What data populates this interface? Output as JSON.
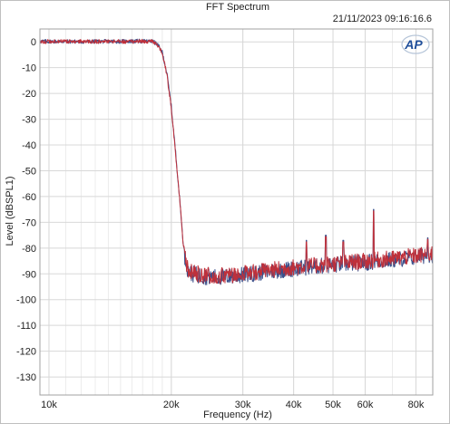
{
  "chart_data": {
    "type": "line",
    "title": "FFT Spectrum",
    "timestamp": "21/11/2023 09:16:16.6",
    "logo_text": "AP",
    "xlabel": "Frequency (Hz)",
    "ylabel": "Level (dBSPL1)",
    "xscale": "log",
    "xlim": [
      9500,
      88000
    ],
    "ylim": [
      -137,
      5
    ],
    "grid": true,
    "x_ticks": [
      10000,
      20000,
      30000,
      40000,
      50000,
      60000,
      80000
    ],
    "x_tick_labels": [
      "10k",
      "20k",
      "30k",
      "40k",
      "50k",
      "60k",
      "80k"
    ],
    "y_ticks": [
      0,
      -10,
      -20,
      -30,
      -40,
      -50,
      -60,
      -70,
      -80,
      -90,
      -100,
      -110,
      -120,
      -130
    ],
    "y_tick_labels": [
      "0",
      "-10",
      "-20",
      "-30",
      "-40",
      "-50",
      "-60",
      "-70",
      "-80",
      "-90",
      "-100",
      "-110",
      "-120",
      "-130"
    ],
    "series": [
      {
        "color": "#3a4f8a",
        "points": [
          [
            9500,
            0.2
          ],
          [
            12000,
            0.1
          ],
          [
            15000,
            0.2
          ],
          [
            17000,
            0.3
          ],
          [
            18000,
            0.2
          ],
          [
            18500,
            -1
          ],
          [
            19000,
            -4
          ],
          [
            19500,
            -12
          ],
          [
            20000,
            -25
          ],
          [
            20500,
            -43
          ],
          [
            21000,
            -62
          ],
          [
            21500,
            -82
          ],
          [
            22000,
            -89
          ],
          [
            22500,
            -90
          ],
          [
            24000,
            -91
          ],
          [
            26000,
            -91.3
          ],
          [
            28000,
            -91
          ],
          [
            30000,
            -90.5
          ],
          [
            33000,
            -89.5
          ],
          [
            36000,
            -88.8
          ],
          [
            40000,
            -88
          ],
          [
            45000,
            -87.2
          ],
          [
            50000,
            -86.6
          ],
          [
            55000,
            -86
          ],
          [
            60000,
            -85.6
          ],
          [
            65000,
            -85
          ],
          [
            70000,
            -84.6
          ],
          [
            75000,
            -84
          ],
          [
            80000,
            -83.4
          ],
          [
            85000,
            -82.8
          ],
          [
            88000,
            -82.5
          ]
        ]
      },
      {
        "color": "#c0303a",
        "points": [
          [
            9500,
            0.1
          ],
          [
            12000,
            0.2
          ],
          [
            15000,
            0.1
          ],
          [
            17000,
            0.2
          ],
          [
            18000,
            0.1
          ],
          [
            18500,
            -1.2
          ],
          [
            19000,
            -4.3
          ],
          [
            19500,
            -12.5
          ],
          [
            20000,
            -25.5
          ],
          [
            20500,
            -43.5
          ],
          [
            21000,
            -62.5
          ],
          [
            21500,
            -82.5
          ],
          [
            22000,
            -88.5
          ],
          [
            22500,
            -89.5
          ],
          [
            24000,
            -90.5
          ],
          [
            26000,
            -90.8
          ],
          [
            28000,
            -90.4
          ],
          [
            30000,
            -89.9
          ],
          [
            33000,
            -89
          ],
          [
            36000,
            -88.3
          ],
          [
            40000,
            -87.5
          ],
          [
            45000,
            -86.8
          ],
          [
            50000,
            -86.1
          ],
          [
            55000,
            -85.5
          ],
          [
            60000,
            -85.1
          ],
          [
            65000,
            -84.5
          ],
          [
            70000,
            -84.1
          ],
          [
            75000,
            -83.5
          ],
          [
            80000,
            -83
          ],
          [
            85000,
            -82.4
          ],
          [
            88000,
            -82
          ]
        ]
      }
    ],
    "peaks": [
      {
        "x": 43000,
        "y": -77
      },
      {
        "x": 48000,
        "y": -75
      },
      {
        "x": 53000,
        "y": -77
      },
      {
        "x": 63000,
        "y": -65
      },
      {
        "x": 85500,
        "y": -76
      }
    ]
  }
}
